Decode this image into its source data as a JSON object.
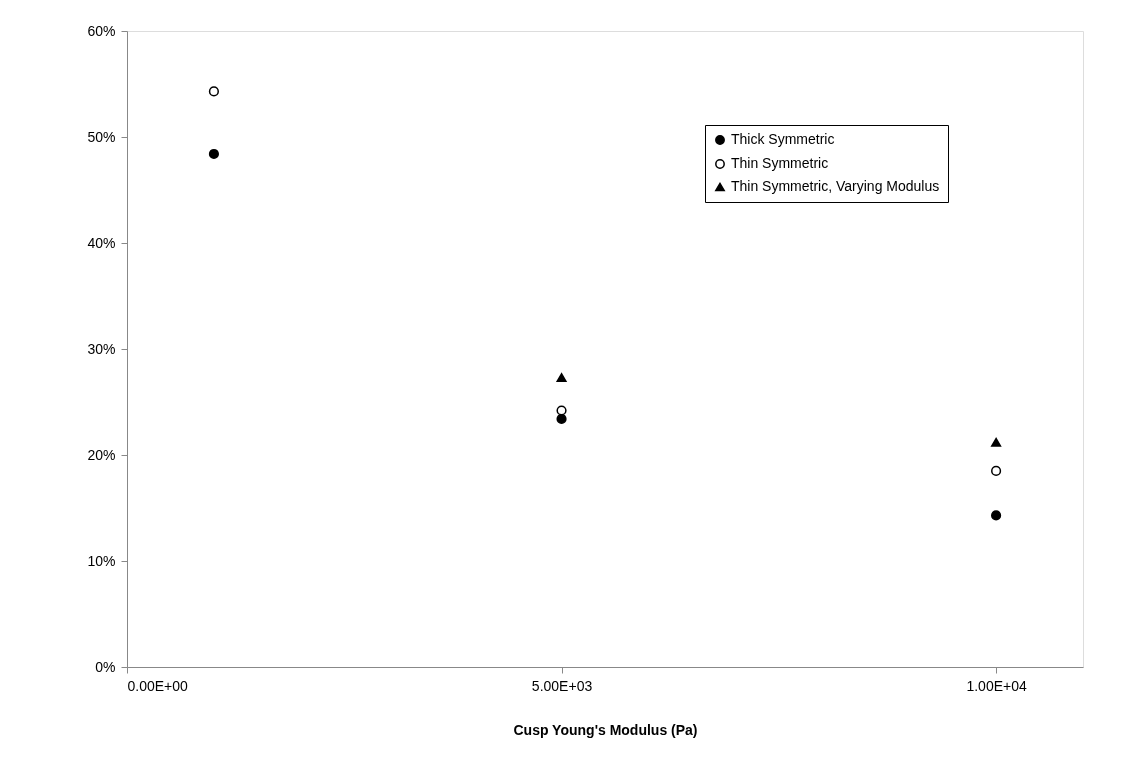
{
  "chart_data": {
    "type": "scatter",
    "xlabel": "Cusp Young's Modulus (Pa)",
    "x": [
      1000,
      5000,
      10000
    ],
    "series": [
      {
        "name": "Thick Symmetric",
        "color": "#000000",
        "marker": "circle",
        "values": [
          48.4,
          23.4,
          14.3
        ]
      },
      {
        "name": "Thin Symmetric",
        "color": "#ffffff",
        "marker": "circle",
        "values": [
          54.3,
          24.2,
          18.5
        ]
      },
      {
        "name": "Thin Symmetric, Varying Modulus",
        "color": "#000000",
        "marker": "triangle",
        "values": [
          null,
          27.3,
          21.2
        ]
      }
    ],
    "xlim": [
      0,
      11000
    ],
    "xticks": [
      {
        "value": 0,
        "label": "0.00E+00"
      },
      {
        "value": 5000,
        "label": "5.00E+03"
      },
      {
        "value": 10000,
        "label": "1.00E+04"
      }
    ],
    "ylim": [
      0,
      60
    ],
    "yticks": [
      {
        "value": 0,
        "label": "0%"
      },
      {
        "value": 10,
        "label": "10%"
      },
      {
        "value": 20,
        "label": "20%"
      },
      {
        "value": 30,
        "label": "30%"
      },
      {
        "value": 40,
        "label": "40%"
      },
      {
        "value": 50,
        "label": "50%"
      },
      {
        "value": 60,
        "label": "60%"
      }
    ],
    "grid": false,
    "legend": "top right"
  }
}
